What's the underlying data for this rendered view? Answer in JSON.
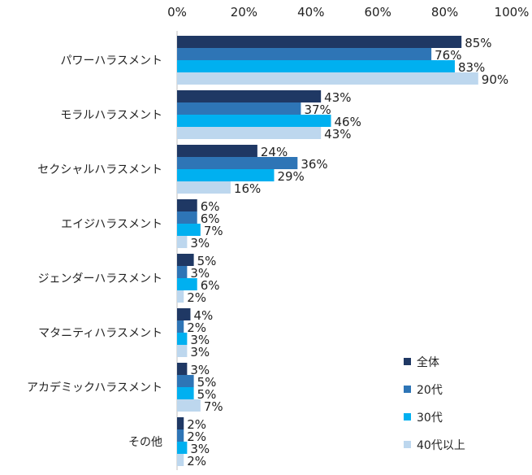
{
  "chart_data": {
    "type": "bar",
    "orientation": "horizontal",
    "categories": [
      "パワーハラスメント",
      "モラルハラスメント",
      "セクシャルハラスメント",
      "エイジハラスメント",
      "ジェンダーハラスメント",
      "マタニティハラスメント",
      "アカデミックハラスメント",
      "その他"
    ],
    "series": [
      {
        "name": "全体",
        "color": "#1f3864",
        "values": [
          85,
          43,
          24,
          6,
          5,
          4,
          3,
          2
        ]
      },
      {
        "name": "20代",
        "color": "#2e75b6",
        "values": [
          76,
          37,
          36,
          6,
          3,
          2,
          5,
          2
        ]
      },
      {
        "name": "30代",
        "color": "#00b0f0",
        "values": [
          83,
          46,
          29,
          7,
          6,
          3,
          5,
          3
        ]
      },
      {
        "name": "40代以上",
        "color": "#bdd7ee",
        "values": [
          90,
          43,
          16,
          3,
          2,
          3,
          7,
          2
        ]
      }
    ],
    "xlim": [
      0,
      100
    ],
    "xticks": [
      "0%",
      "20%",
      "40%",
      "60%",
      "80%",
      "100%"
    ],
    "value_suffix": "%",
    "title": "",
    "xlabel": "",
    "ylabel": "",
    "grid": false,
    "legend_position": "bottom-right"
  }
}
